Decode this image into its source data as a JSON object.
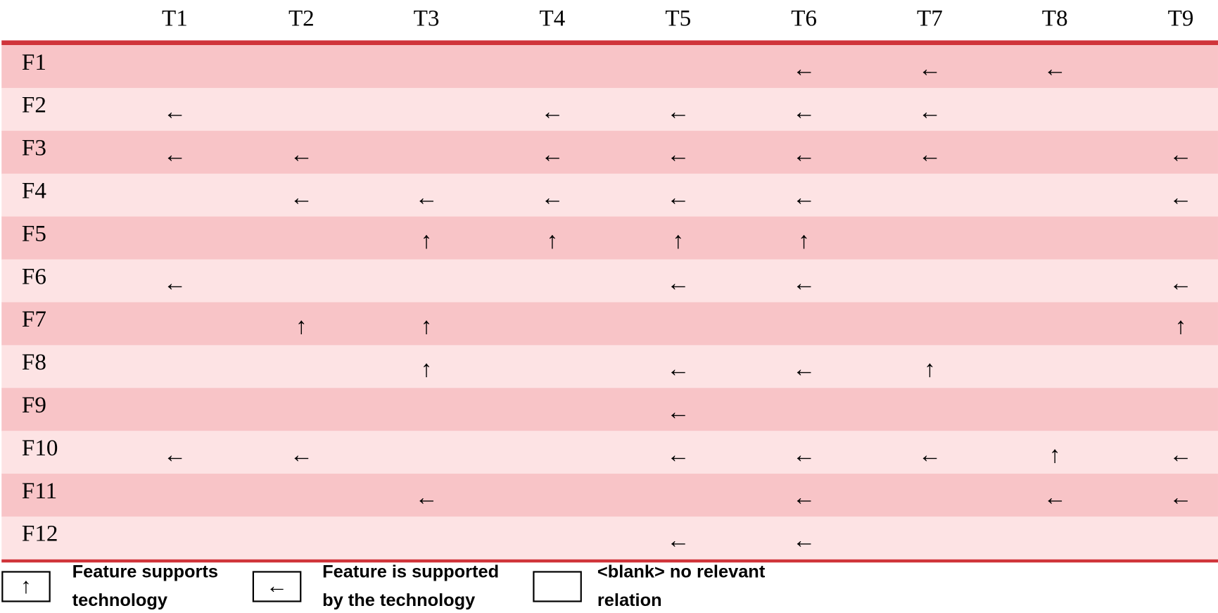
{
  "table": {
    "columns": [
      "T1",
      "T2",
      "T3",
      "T4",
      "T5",
      "T6",
      "T7",
      "T8",
      "T9"
    ],
    "rows": [
      {
        "label": "F1",
        "cells": [
          null,
          null,
          null,
          null,
          null,
          "←",
          "←",
          "←",
          null
        ]
      },
      {
        "label": "F2",
        "cells": [
          "←",
          null,
          null,
          "←",
          "←",
          "←",
          "←",
          null,
          null
        ]
      },
      {
        "label": "F3",
        "cells": [
          "←",
          "←",
          null,
          "←",
          "←",
          "←",
          "←",
          null,
          "←"
        ]
      },
      {
        "label": "F4",
        "cells": [
          null,
          "←",
          "←",
          "←",
          "←",
          "←",
          null,
          null,
          "←"
        ]
      },
      {
        "label": "F5",
        "cells": [
          null,
          null,
          "↑",
          "↑",
          "↑",
          "↑",
          null,
          null,
          null
        ]
      },
      {
        "label": "F6",
        "cells": [
          "←",
          null,
          null,
          null,
          "←",
          "←",
          null,
          null,
          "←"
        ]
      },
      {
        "label": "F7",
        "cells": [
          null,
          "↑",
          "↑",
          null,
          null,
          null,
          null,
          null,
          "↑"
        ]
      },
      {
        "label": "F8",
        "cells": [
          null,
          null,
          "↑",
          null,
          "←",
          "←",
          "↑",
          null,
          null
        ]
      },
      {
        "label": "F9",
        "cells": [
          null,
          null,
          null,
          null,
          "←",
          null,
          null,
          null,
          null
        ]
      },
      {
        "label": "F10",
        "cells": [
          "←",
          "←",
          null,
          null,
          "←",
          "←",
          "←",
          "↑",
          "←"
        ]
      },
      {
        "label": "F11",
        "cells": [
          null,
          null,
          "←",
          null,
          null,
          "←",
          null,
          "←",
          "←"
        ]
      },
      {
        "label": "F12",
        "cells": [
          null,
          null,
          null,
          null,
          "←",
          "←",
          null,
          null,
          null
        ]
      }
    ]
  },
  "legend": {
    "items": [
      {
        "symbol": "↑",
        "lines": [
          "Feature supports",
          "technology"
        ]
      },
      {
        "symbol": "←",
        "lines": [
          "Feature is supported",
          "by the technology"
        ]
      },
      {
        "lines": [
          "<blank> no relevant",
          "relation"
        ]
      }
    ]
  }
}
